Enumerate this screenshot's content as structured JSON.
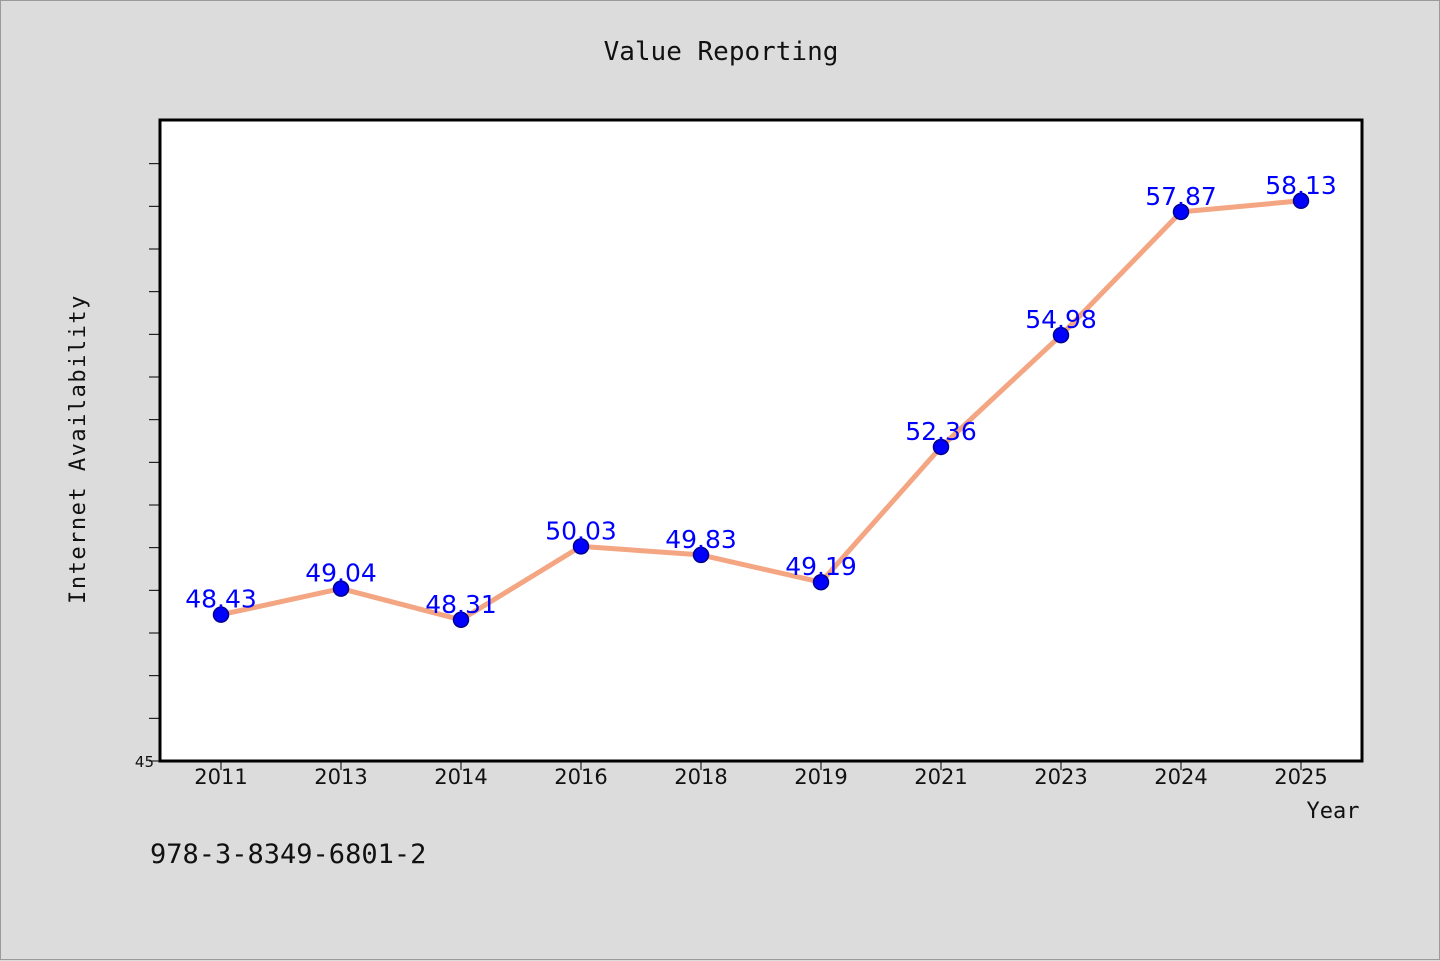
{
  "chart_data": {
    "type": "line",
    "title": "Value Reporting",
    "xlabel": "Year",
    "ylabel": "Internet Availability",
    "categories": [
      "2011",
      "2013",
      "2014",
      "2016",
      "2018",
      "2019",
      "2021",
      "2023",
      "2024",
      "2025"
    ],
    "series": [
      {
        "values": [
          48.43,
          49.04,
          48.31,
          50.03,
          49.83,
          49.19,
          52.36,
          54.98,
          57.87,
          58.13
        ]
      }
    ],
    "data_labels": [
      "48.43",
      "49.04",
      "48.31",
      "50.03",
      "49.83",
      "49.19",
      "52.36",
      "54.98",
      "57.87",
      "58.13"
    ],
    "yticks": [
      "45"
    ],
    "ylim": [
      45,
      60
    ],
    "grid": false,
    "legend": "none",
    "colors": {
      "line": "#f4a582",
      "marker": "#0000ff",
      "marker_edge": "#00008b",
      "label": "#0000ff",
      "background": "#dcdcdc",
      "plot_area": "#ffffff"
    }
  },
  "footer": {
    "identifier": "978-3-8349-6801-2"
  }
}
